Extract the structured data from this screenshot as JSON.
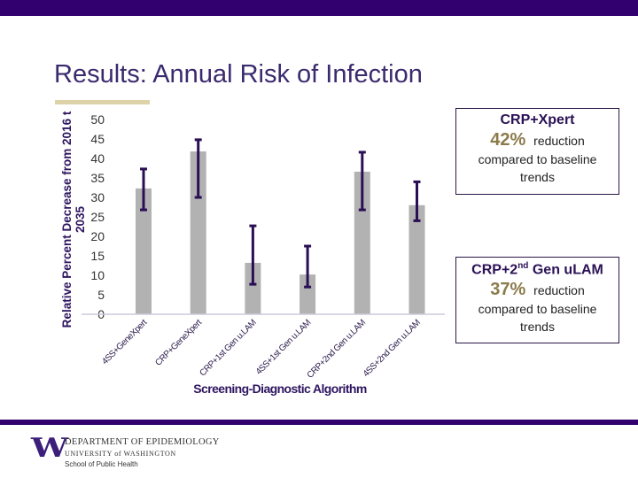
{
  "slide": {
    "title": "Results: Annual Risk of Infection",
    "colors": {
      "brand_purple": "#33006f",
      "title_purple": "#3b2a6e",
      "gold": "#8b7a4a",
      "bar": "#b2b2b2",
      "error_bar": "#2a0f55"
    }
  },
  "chart_data": {
    "type": "bar",
    "title": "",
    "xlabel": "Screening-Diagnostic Algorithm",
    "ylabel": "Relative Percent Decrease from 2016 t 2035",
    "ylabel_lines": [
      "Relative Percent Decrease from 2016 t",
      "2035"
    ],
    "ylim": [
      0,
      50
    ],
    "yticks": [
      0,
      5,
      10,
      15,
      20,
      25,
      30,
      35,
      40,
      45,
      50
    ],
    "grid": false,
    "categories": [
      "4SS+GeneXpert",
      "CRP+GeneXpert",
      "CRP+1st Gen u.LAM",
      "4SS+1st Gen u.LAM",
      "CRP+2nd Gen u.LAM",
      "4SS+2nd Gen u.LAM"
    ],
    "values": [
      32.3,
      41.8,
      13.2,
      10.2,
      36.6,
      28.0
    ],
    "error_low": [
      26.8,
      30.0,
      7.7,
      7.0,
      26.8,
      24.0
    ],
    "error_high": [
      37.3,
      44.8,
      22.7,
      17.5,
      41.6,
      34.0
    ]
  },
  "callouts": [
    {
      "head": "CRP+Xpert",
      "head_sup": "",
      "head_suffix": "",
      "pct": "42%",
      "reduction": "reduction",
      "line1": "compared to baseline",
      "line2": "trends"
    },
    {
      "head": "CRP+2",
      "head_sup": "nd",
      "head_suffix": " Gen uLAM",
      "pct": "37%",
      "reduction": "reduction",
      "line1": "compared to baseline",
      "line2": "trends"
    }
  ],
  "footer": {
    "logo_letter": "W",
    "department": "DEPARTMENT OF EPIDEMIOLOGY",
    "university": "UNIVERSITY of WASHINGTON",
    "school": "School of Public Health"
  }
}
